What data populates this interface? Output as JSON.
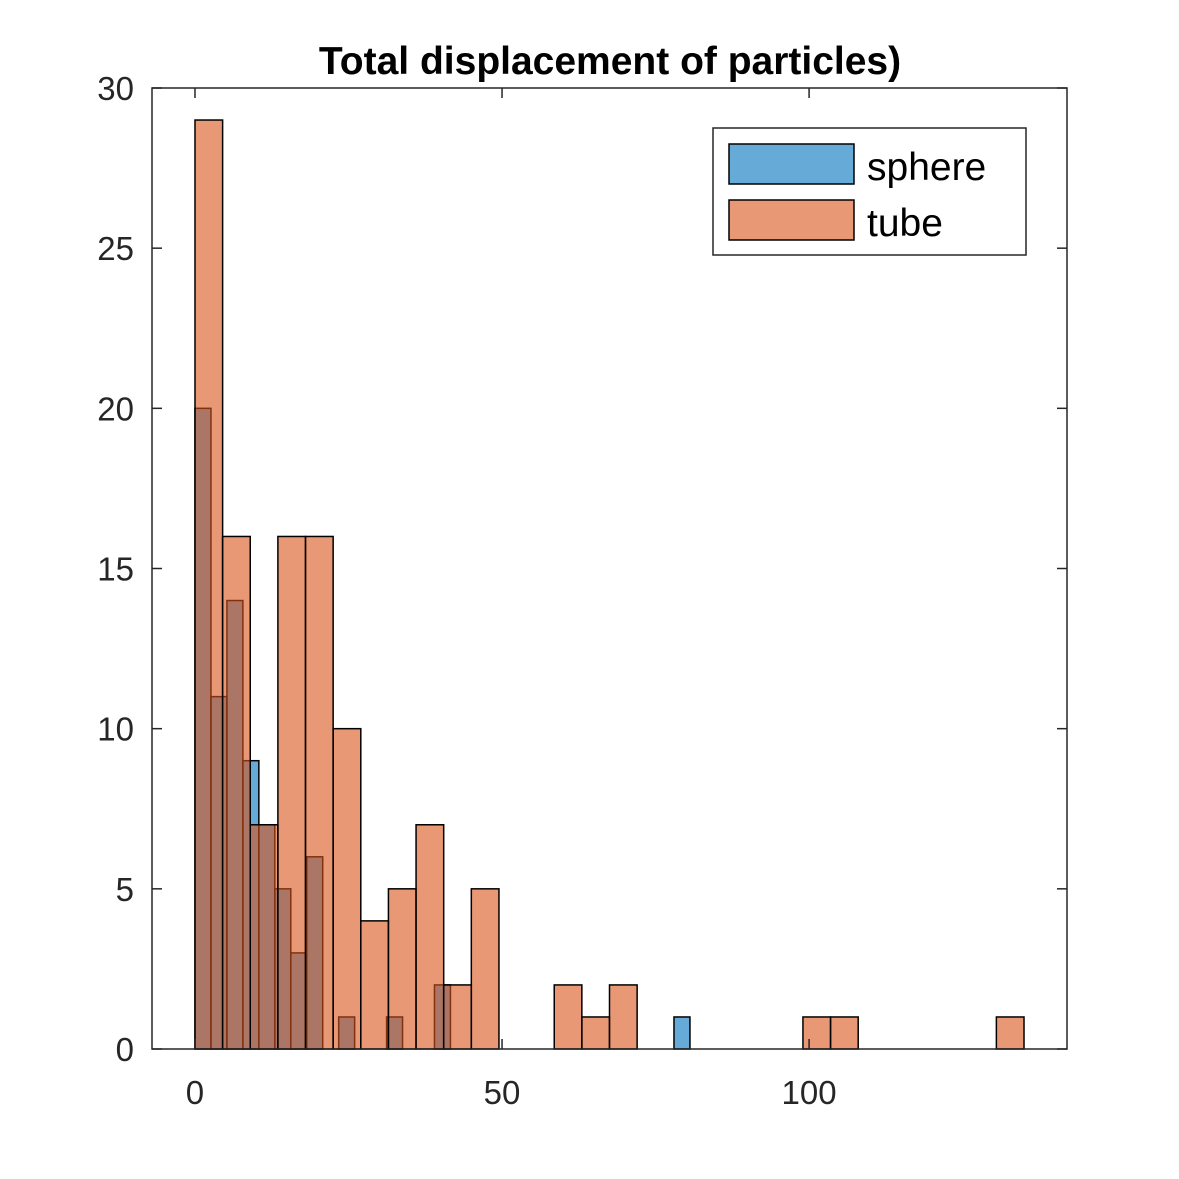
{
  "colors": {
    "sphere": "#0072bd",
    "tube": "#d95319",
    "axis": "#262626",
    "background": "#ffffff"
  },
  "chart_data": {
    "type": "bar",
    "title": "Total displacement of particles)",
    "xlabel": "",
    "ylabel": "",
    "xlim": [
      -7,
      142
    ],
    "ylim": [
      0,
      30
    ],
    "xticks": [
      0,
      50,
      100
    ],
    "yticks": [
      0,
      5,
      10,
      15,
      20,
      25,
      30
    ],
    "grid": false,
    "legend_position": "top-right",
    "series": [
      {
        "name": "sphere",
        "color": "#0072bd",
        "opacity": 0.6,
        "bins": [
          {
            "start": 0.0,
            "end": 2.6,
            "count": 20
          },
          {
            "start": 2.6,
            "end": 5.2,
            "count": 11
          },
          {
            "start": 5.2,
            "end": 7.8,
            "count": 14
          },
          {
            "start": 7.8,
            "end": 10.4,
            "count": 9
          },
          {
            "start": 10.4,
            "end": 13.0,
            "count": 7
          },
          {
            "start": 13.0,
            "end": 15.6,
            "count": 5
          },
          {
            "start": 15.6,
            "end": 18.2,
            "count": 3
          },
          {
            "start": 18.2,
            "end": 20.8,
            "count": 6
          },
          {
            "start": 20.8,
            "end": 23.4,
            "count": 0
          },
          {
            "start": 23.4,
            "end": 26.0,
            "count": 1
          },
          {
            "start": 31.2,
            "end": 33.8,
            "count": 1
          },
          {
            "start": 39.0,
            "end": 41.6,
            "count": 2
          },
          {
            "start": 78.0,
            "end": 80.6,
            "count": 1
          }
        ]
      },
      {
        "name": "tube",
        "color": "#d95319",
        "opacity": 0.6,
        "bins": [
          {
            "start": 0.0,
            "end": 4.5,
            "count": 29
          },
          {
            "start": 4.5,
            "end": 9.0,
            "count": 16
          },
          {
            "start": 9.0,
            "end": 13.5,
            "count": 7
          },
          {
            "start": 13.5,
            "end": 18.0,
            "count": 16
          },
          {
            "start": 18.0,
            "end": 22.5,
            "count": 16
          },
          {
            "start": 22.5,
            "end": 27.0,
            "count": 10
          },
          {
            "start": 27.0,
            "end": 31.5,
            "count": 4
          },
          {
            "start": 31.5,
            "end": 36.0,
            "count": 5
          },
          {
            "start": 36.0,
            "end": 40.5,
            "count": 7
          },
          {
            "start": 40.5,
            "end": 45.0,
            "count": 2
          },
          {
            "start": 45.0,
            "end": 49.5,
            "count": 5
          },
          {
            "start": 49.5,
            "end": 54.0,
            "count": 0
          },
          {
            "start": 54.0,
            "end": 58.5,
            "count": 0
          },
          {
            "start": 58.5,
            "end": 63.0,
            "count": 2
          },
          {
            "start": 63.0,
            "end": 67.5,
            "count": 1
          },
          {
            "start": 67.5,
            "end": 72.0,
            "count": 2
          },
          {
            "start": 72.0,
            "end": 76.5,
            "count": 0
          },
          {
            "start": 76.5,
            "end": 81.0,
            "count": 0
          },
          {
            "start": 81.0,
            "end": 85.5,
            "count": 0
          },
          {
            "start": 85.5,
            "end": 90.0,
            "count": 0
          },
          {
            "start": 90.0,
            "end": 94.5,
            "count": 0
          },
          {
            "start": 94.5,
            "end": 99.0,
            "count": 0
          },
          {
            "start": 99.0,
            "end": 103.5,
            "count": 1
          },
          {
            "start": 103.5,
            "end": 108.0,
            "count": 1
          },
          {
            "start": 108.0,
            "end": 112.5,
            "count": 0
          },
          {
            "start": 112.5,
            "end": 117.0,
            "count": 0
          },
          {
            "start": 117.0,
            "end": 121.5,
            "count": 0
          },
          {
            "start": 121.5,
            "end": 126.0,
            "count": 0
          },
          {
            "start": 126.0,
            "end": 130.5,
            "count": 0
          },
          {
            "start": 130.5,
            "end": 135.0,
            "count": 1
          }
        ]
      }
    ]
  }
}
